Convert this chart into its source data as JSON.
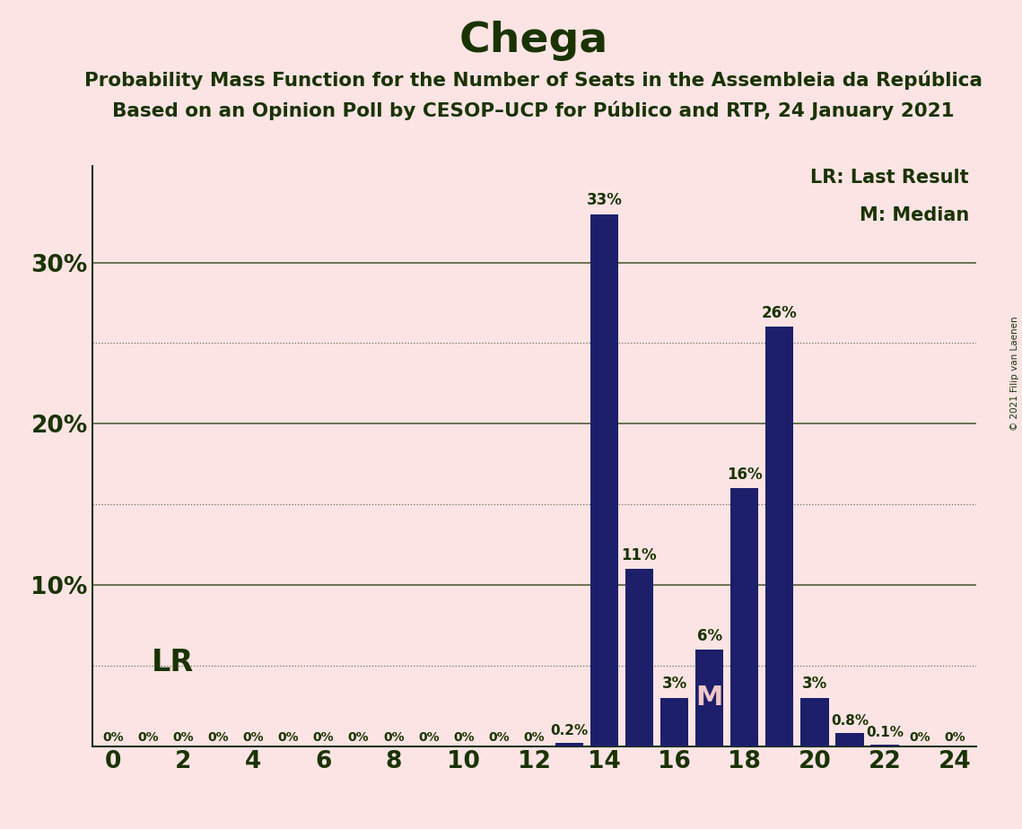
{
  "title": "Chega",
  "subtitle1": "Probability Mass Function for the Number of Seats in the Assembleia da República",
  "subtitle2": "Based on an Opinion Poll by CESOP–UCP for Público and RTP, 24 January 2021",
  "copyright": "© 2021 Filip van Laenen",
  "legend_lr": "LR: Last Result",
  "legend_m": "M: Median",
  "lr_label": "LR",
  "median_label": "M",
  "lr_x": 1,
  "median_x": 17,
  "seats": [
    0,
    1,
    2,
    3,
    4,
    5,
    6,
    7,
    8,
    9,
    10,
    11,
    12,
    13,
    14,
    15,
    16,
    17,
    18,
    19,
    20,
    21,
    22,
    23,
    24
  ],
  "probabilities": [
    0.0,
    0.0,
    0.0,
    0.0,
    0.0,
    0.0,
    0.0,
    0.0,
    0.0,
    0.0,
    0.0,
    0.0,
    0.0,
    0.2,
    33.0,
    11.0,
    3.0,
    6.0,
    16.0,
    26.0,
    3.0,
    0.8,
    0.1,
    0.0,
    0.0
  ],
  "bar_color": "#1e1f6b",
  "background_color": "#fce4e4",
  "text_color": "#1a3300",
  "median_text_color": "#f0c8c8",
  "title_fontsize": 34,
  "subtitle_fontsize": 15.5,
  "tick_fontsize": 19,
  "bar_label_fontsize": 11,
  "bar_label_large_fontsize": 12,
  "legend_fontsize": 15,
  "lr_fontsize": 24,
  "median_fontsize": 22,
  "copyright_fontsize": 7.5,
  "dotted_grid_values": [
    5,
    15,
    25
  ],
  "solid_grid_values": [
    10,
    20,
    30
  ],
  "xlim": [
    -0.6,
    24.6
  ],
  "ylim": [
    0,
    36
  ],
  "bar_width": 0.8
}
